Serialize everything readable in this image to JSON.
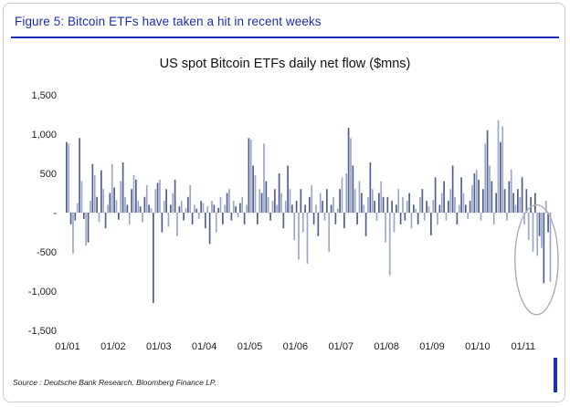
{
  "figure": {
    "caption": "Figure 5: Bitcoin ETFs have taken a hit in recent weeks",
    "source": "Source : Deutsche Bank Research, Bloomberg Finance LP."
  },
  "colors": {
    "accent_blue": "#1b2eb8",
    "bar_dark": "#51608f",
    "bar_light": "#9ca8c6",
    "ellipse_grey": "#a9aeb8",
    "border_grey": "#c8cbd2",
    "axis_text": "#222222"
  },
  "chart_data": {
    "type": "bar",
    "title": "US spot Bitcoin ETFs daily net flow ($mns)",
    "xlabel": "",
    "ylabel": "",
    "ylim": [
      -1500,
      1500
    ],
    "y_ticks": [
      1500,
      1000,
      500,
      0,
      -500,
      -1000,
      -1500
    ],
    "y_tick_labels": [
      "1,500",
      "1,000",
      "500",
      "-",
      "-500",
      "-1,000",
      "-1,500"
    ],
    "x_tick_labels": [
      "01/01",
      "01/02",
      "01/03",
      "01/04",
      "01/05",
      "01/06",
      "01/07",
      "01/08",
      "01/09",
      "01/10",
      "01/11"
    ],
    "grid": false,
    "legend": false,
    "annotation": {
      "shape": "ellipse",
      "note": "recent weeks of net outflows circled",
      "span_last_bars": 14,
      "center_value": -600,
      "half_height_value": 700
    },
    "series": [
      {
        "month": "01/01",
        "values": [
          900,
          880,
          -150,
          -520,
          -100,
          120,
          950,
          400,
          -80,
          -420,
          -380,
          150,
          620,
          480,
          200,
          -120,
          540,
          300,
          -200,
          100,
          250
        ]
      },
      {
        "month": "01/02",
        "values": [
          620,
          320,
          160,
          -90,
          400,
          640,
          200,
          100,
          -150,
          300,
          480,
          420,
          150,
          80,
          -120,
          200,
          350,
          100,
          60,
          -1150,
          300
        ]
      },
      {
        "month": "01/03",
        "values": [
          380,
          420,
          -250,
          150,
          300,
          -180,
          100,
          250,
          420,
          -300,
          80,
          150,
          -100,
          60,
          200,
          350,
          -150,
          100,
          50,
          -80,
          150
        ]
      },
      {
        "month": "01/04",
        "values": [
          120,
          -200,
          80,
          -400,
          150,
          100,
          -250,
          60,
          200,
          -150,
          100,
          250,
          300,
          -100,
          150,
          80,
          -60,
          120,
          200,
          -150,
          100
        ]
      },
      {
        "month": "01/05",
        "values": [
          950,
          930,
          600,
          480,
          -150,
          300,
          250,
          880,
          400,
          200,
          -100,
          150,
          300,
          100,
          500,
          250,
          -200,
          150,
          600,
          300,
          100
        ]
      },
      {
        "month": "01/06",
        "values": [
          -350,
          150,
          -600,
          300,
          -250,
          100,
          -650,
          200,
          350,
          -150,
          100,
          -300,
          250,
          150,
          -100,
          300,
          -500,
          100,
          200,
          -150,
          50
        ]
      },
      {
        "month": "01/07",
        "values": [
          300,
          450,
          -200,
          500,
          1080,
          950,
          600,
          300,
          -150,
          400,
          250,
          100,
          -300,
          200,
          640,
          300,
          150,
          -100,
          250,
          400,
          200
        ]
      },
      {
        "month": "01/08",
        "values": [
          -380,
          200,
          -800,
          150,
          -250,
          100,
          300,
          -150,
          200,
          -100,
          150,
          250,
          -200,
          100,
          50,
          -150,
          200,
          300,
          -100,
          150,
          80
        ]
      },
      {
        "month": "01/09",
        "values": [
          -290,
          160,
          450,
          -150,
          100,
          250,
          400,
          -100,
          150,
          300,
          600,
          200,
          -150,
          100,
          450,
          250,
          100,
          -80,
          150,
          350,
          500
        ]
      },
      {
        "month": "01/10",
        "values": [
          550,
          420,
          -100,
          300,
          880,
          1050,
          600,
          400,
          -150,
          250,
          1180,
          900,
          1100,
          300,
          -100,
          400,
          550,
          250,
          100,
          300,
          200
        ]
      },
      {
        "month": "01/11",
        "values": [
          450,
          -150,
          300,
          -350,
          200,
          -500,
          250,
          -550,
          -300,
          -450,
          -900,
          150,
          -250,
          -880
        ]
      }
    ]
  }
}
